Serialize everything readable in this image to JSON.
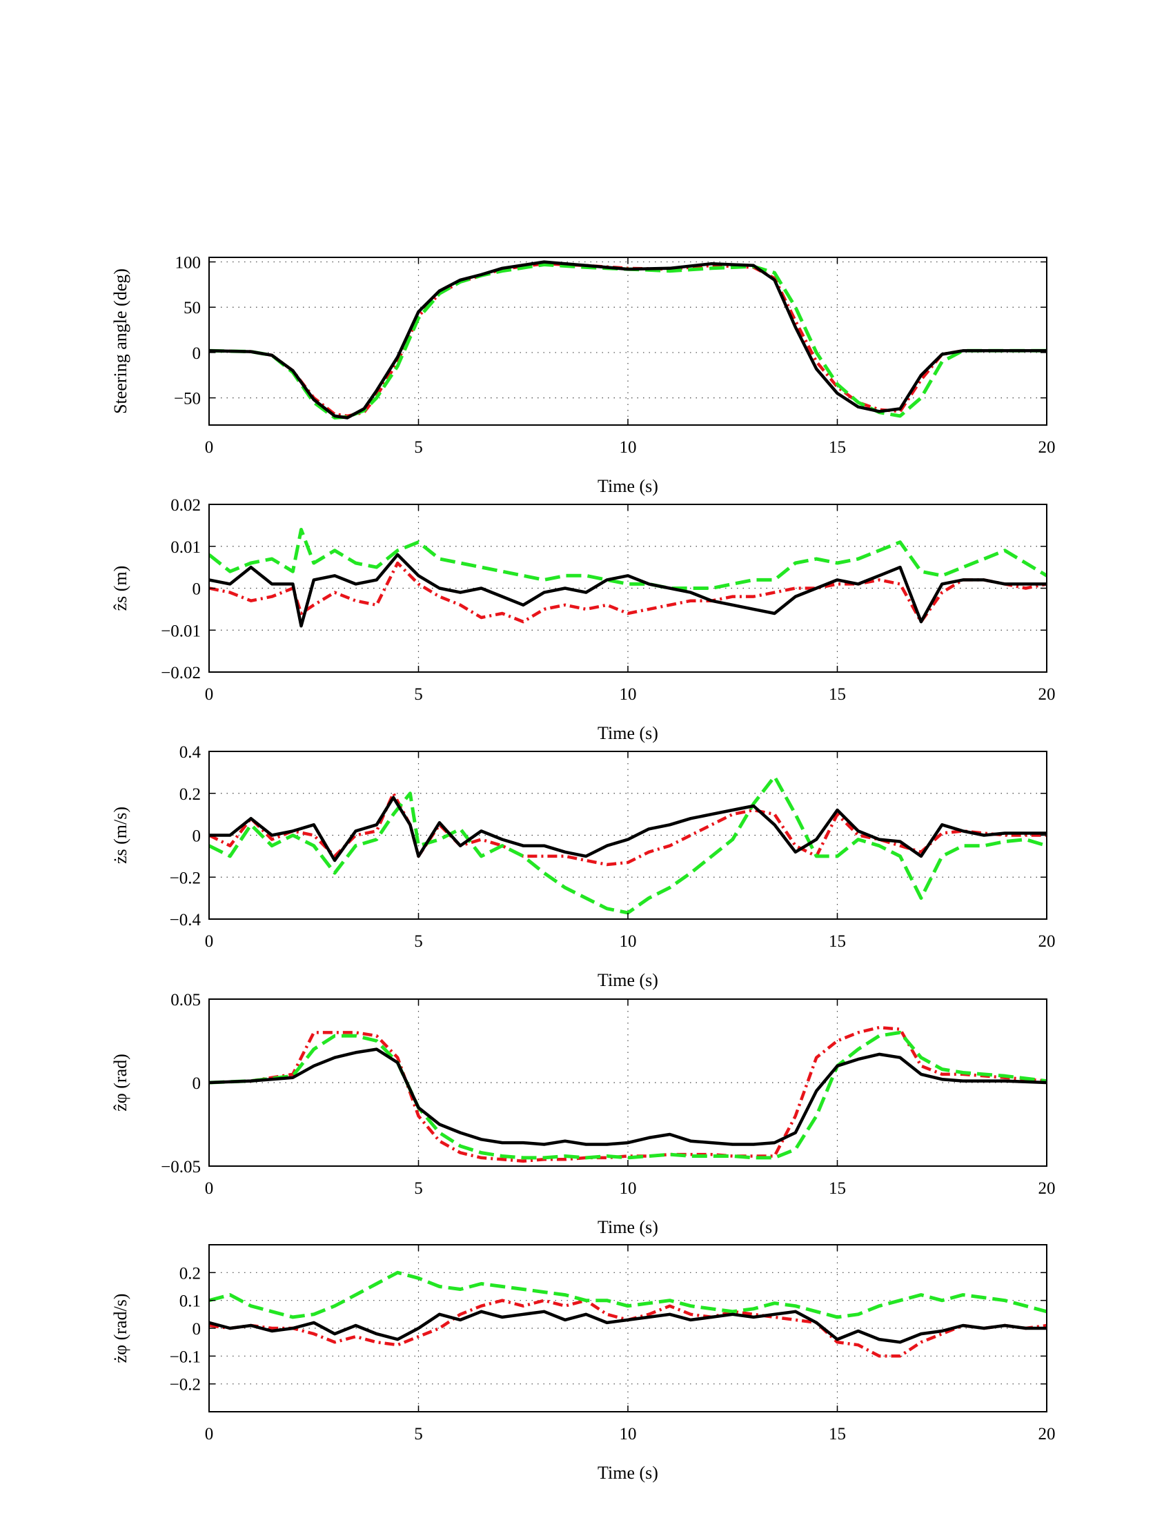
{
  "colors": {
    "series_1": "#e8141a",
    "series_2": "#23e623",
    "series_3": "#000000"
  },
  "chart_data": [
    {
      "type": "line",
      "xlabel": "Time (s)",
      "ylabel": "Steering angle (deg)",
      "xlim": [
        0,
        20
      ],
      "ylim": [
        -80,
        105
      ],
      "xticks": [
        0,
        5,
        10,
        15,
        20
      ],
      "xtick_labels": [
        "0",
        "5",
        "10",
        "15",
        "20"
      ],
      "yticks": [
        -50,
        0,
        50,
        100
      ],
      "ytick_labels": [
        "−50",
        "0",
        "50",
        "100"
      ],
      "grid": true,
      "x": [
        0,
        1,
        1.5,
        2,
        2.5,
        3,
        3.3,
        3.7,
        4,
        4.5,
        5,
        5.5,
        6,
        6.5,
        7,
        8,
        9,
        10,
        11,
        12,
        13,
        13.5,
        14,
        14.5,
        15,
        15.5,
        16,
        16.5,
        17,
        17.5,
        18,
        19,
        20
      ],
      "series": [
        {
          "style": "dashdot",
          "values": [
            2,
            1,
            -3,
            -20,
            -50,
            -68,
            -70,
            -66,
            -48,
            -10,
            40,
            65,
            78,
            85,
            92,
            98,
            96,
            93,
            92,
            96,
            94,
            82,
            35,
            -10,
            -38,
            -55,
            -63,
            -65,
            -30,
            -2,
            2,
            2,
            2
          ]
        },
        {
          "style": "dashed",
          "values": [
            2,
            1,
            -3,
            -22,
            -55,
            -72,
            -71,
            -64,
            -50,
            -15,
            38,
            65,
            78,
            85,
            90,
            97,
            94,
            92,
            90,
            93,
            95,
            88,
            50,
            0,
            -35,
            -55,
            -66,
            -70,
            -50,
            -10,
            2,
            2,
            2
          ]
        },
        {
          "style": "solid",
          "values": [
            2,
            1,
            -3,
            -20,
            -52,
            -70,
            -72,
            -62,
            -42,
            -5,
            45,
            68,
            80,
            86,
            93,
            100,
            96,
            92,
            93,
            98,
            96,
            80,
            28,
            -18,
            -45,
            -60,
            -65,
            -62,
            -25,
            -2,
            2,
            2,
            2
          ]
        }
      ]
    },
    {
      "type": "line",
      "xlabel": "Time (s)",
      "ylabel": "ẑs (m)",
      "xlim": [
        0,
        20
      ],
      "ylim": [
        -0.02,
        0.02
      ],
      "xticks": [
        0,
        5,
        10,
        15,
        20
      ],
      "xtick_labels": [
        "0",
        "5",
        "10",
        "15",
        "20"
      ],
      "yticks": [
        -0.02,
        -0.01,
        0,
        0.01,
        0.02
      ],
      "ytick_labels": [
        "−0.02",
        "−0.01",
        "0",
        "0.01",
        "0.02"
      ],
      "grid": true,
      "x": [
        0,
        0.5,
        1,
        1.5,
        2,
        2.2,
        2.5,
        3,
        3.5,
        4,
        4.5,
        5,
        5.5,
        6,
        6.5,
        7,
        7.5,
        8,
        8.5,
        9,
        9.5,
        10,
        10.5,
        11,
        11.5,
        12,
        12.5,
        13,
        13.5,
        14,
        14.5,
        15,
        15.5,
        16,
        16.5,
        17,
        17.5,
        18,
        18.5,
        19,
        19.5,
        20
      ],
      "series": [
        {
          "style": "dashdot",
          "values": [
            0,
            -0.001,
            -0.003,
            -0.002,
            0,
            -0.006,
            -0.004,
            -0.001,
            -0.003,
            -0.004,
            0.006,
            0.001,
            -0.002,
            -0.004,
            -0.007,
            -0.006,
            -0.008,
            -0.005,
            -0.004,
            -0.005,
            -0.004,
            -0.006,
            -0.005,
            -0.004,
            -0.003,
            -0.003,
            -0.002,
            -0.002,
            -0.001,
            0,
            0,
            0.001,
            0.001,
            0.002,
            0.001,
            -0.008,
            -0.001,
            0.002,
            0.002,
            0.001,
            0,
            0.001
          ]
        },
        {
          "style": "dashed",
          "values": [
            0.008,
            0.004,
            0.006,
            0.007,
            0.004,
            0.014,
            0.006,
            0.009,
            0.006,
            0.005,
            0.009,
            0.011,
            0.007,
            0.006,
            0.005,
            0.004,
            0.003,
            0.002,
            0.003,
            0.003,
            0.002,
            0.001,
            0.001,
            0,
            0,
            0,
            0.001,
            0.002,
            0.002,
            0.006,
            0.007,
            0.006,
            0.007,
            0.009,
            0.011,
            0.004,
            0.003,
            0.005,
            0.007,
            0.009,
            0.006,
            0.003
          ]
        },
        {
          "style": "solid",
          "values": [
            0.002,
            0.001,
            0.005,
            0.001,
            0.001,
            -0.009,
            0.002,
            0.003,
            0.001,
            0.002,
            0.008,
            0.003,
            0,
            -0.001,
            0,
            -0.002,
            -0.004,
            -0.001,
            0,
            -0.001,
            0.002,
            0.003,
            0.001,
            0,
            -0.001,
            -0.003,
            -0.004,
            -0.005,
            -0.006,
            -0.002,
            0,
            0.002,
            0.001,
            0.003,
            0.005,
            -0.008,
            0.001,
            0.002,
            0.002,
            0.001,
            0.001,
            0.001
          ]
        }
      ]
    },
    {
      "type": "line",
      "xlabel": "Time (s)",
      "ylabel": "żs (m/s)",
      "xlim": [
        0,
        20
      ],
      "ylim": [
        -0.4,
        0.4
      ],
      "xticks": [
        0,
        5,
        10,
        15,
        20
      ],
      "xtick_labels": [
        "0",
        "5",
        "10",
        "15",
        "20"
      ],
      "yticks": [
        -0.4,
        -0.2,
        0,
        0.2,
        0.4
      ],
      "ytick_labels": [
        "−0.4",
        "−0.2",
        "0",
        "0.2",
        "0.4"
      ],
      "grid": true,
      "x": [
        0,
        0.5,
        1,
        1.5,
        2,
        2.5,
        3,
        3.5,
        4,
        4.4,
        4.8,
        5,
        5.5,
        6,
        6.5,
        7,
        7.5,
        8,
        8.5,
        9,
        9.5,
        10,
        10.5,
        11,
        11.5,
        12,
        12.5,
        13,
        13.5,
        14,
        14.5,
        15,
        15.5,
        16,
        16.5,
        17,
        17.5,
        18,
        18.5,
        19,
        19.5,
        20
      ],
      "series": [
        {
          "style": "dashdot",
          "values": [
            0,
            -0.05,
            0.08,
            -0.02,
            0.02,
            0,
            -0.1,
            0,
            0.02,
            0.2,
            0.05,
            -0.1,
            0.05,
            -0.05,
            -0.02,
            -0.05,
            -0.1,
            -0.1,
            -0.1,
            -0.12,
            -0.14,
            -0.13,
            -0.08,
            -0.05,
            0,
            0.05,
            0.1,
            0.12,
            0.1,
            -0.05,
            -0.1,
            0.1,
            0,
            -0.02,
            -0.05,
            -0.08,
            0.01,
            0.02,
            0.01,
            0,
            0,
            0
          ]
        },
        {
          "style": "dashed",
          "values": [
            -0.05,
            -0.1,
            0.05,
            -0.05,
            0,
            -0.05,
            -0.18,
            -0.05,
            -0.02,
            0.1,
            0.2,
            -0.05,
            -0.02,
            0.03,
            -0.1,
            -0.05,
            -0.1,
            -0.18,
            -0.25,
            -0.3,
            -0.35,
            -0.37,
            -0.3,
            -0.25,
            -0.18,
            -0.1,
            -0.02,
            0.15,
            0.28,
            0.1,
            -0.1,
            -0.1,
            -0.02,
            -0.05,
            -0.1,
            -0.3,
            -0.1,
            -0.05,
            -0.05,
            -0.03,
            -0.02,
            -0.05
          ]
        },
        {
          "style": "solid",
          "values": [
            0,
            0,
            0.08,
            0,
            0.02,
            0.05,
            -0.12,
            0.02,
            0.05,
            0.18,
            0.05,
            -0.1,
            0.06,
            -0.05,
            0.02,
            -0.02,
            -0.05,
            -0.05,
            -0.08,
            -0.1,
            -0.05,
            -0.02,
            0.03,
            0.05,
            0.08,
            0.1,
            0.12,
            0.14,
            0.05,
            -0.08,
            -0.02,
            0.12,
            0.02,
            -0.02,
            -0.03,
            -0.1,
            0.05,
            0.02,
            0,
            0.01,
            0.01,
            0.01
          ]
        }
      ]
    },
    {
      "type": "line",
      "xlabel": "Time (s)",
      "ylabel": "ẑφ (rad)",
      "xlim": [
        0,
        20
      ],
      "ylim": [
        -0.05,
        0.05
      ],
      "xticks": [
        0,
        5,
        10,
        15,
        20
      ],
      "xtick_labels": [
        "0",
        "5",
        "10",
        "15",
        "20"
      ],
      "yticks": [
        -0.05,
        0,
        0.05
      ],
      "ytick_labels": [
        "−0.05",
        "0",
        "0.05"
      ],
      "grid": true,
      "x": [
        0,
        1,
        2,
        2.5,
        3,
        3.5,
        4,
        4.5,
        5,
        5.5,
        6,
        6.5,
        7,
        7.5,
        8,
        8.5,
        9,
        9.5,
        10,
        10.5,
        11,
        11.5,
        12,
        12.5,
        13,
        13.5,
        14,
        14.5,
        15,
        15.5,
        16,
        16.5,
        17,
        17.5,
        18,
        19,
        20
      ],
      "series": [
        {
          "style": "dashdot",
          "values": [
            0,
            0.001,
            0.005,
            0.03,
            0.03,
            0.03,
            0.028,
            0.015,
            -0.02,
            -0.035,
            -0.042,
            -0.045,
            -0.046,
            -0.047,
            -0.046,
            -0.046,
            -0.045,
            -0.045,
            -0.044,
            -0.044,
            -0.043,
            -0.043,
            -0.043,
            -0.044,
            -0.044,
            -0.044,
            -0.02,
            0.015,
            0.025,
            0.03,
            0.033,
            0.032,
            0.01,
            0.005,
            0.005,
            0.003,
            0.001
          ]
        },
        {
          "style": "dashed",
          "values": [
            0,
            0.001,
            0.004,
            0.02,
            0.028,
            0.028,
            0.025,
            0.012,
            -0.015,
            -0.03,
            -0.038,
            -0.042,
            -0.044,
            -0.045,
            -0.045,
            -0.044,
            -0.045,
            -0.044,
            -0.045,
            -0.044,
            -0.043,
            -0.044,
            -0.044,
            -0.044,
            -0.045,
            -0.045,
            -0.04,
            -0.02,
            0.01,
            0.02,
            0.028,
            0.03,
            0.015,
            0.008,
            0.006,
            0.004,
            0.001
          ]
        },
        {
          "style": "solid",
          "values": [
            0,
            0.001,
            0.003,
            0.01,
            0.015,
            0.018,
            0.02,
            0.012,
            -0.015,
            -0.025,
            -0.03,
            -0.034,
            -0.036,
            -0.036,
            -0.037,
            -0.035,
            -0.037,
            -0.037,
            -0.036,
            -0.033,
            -0.031,
            -0.035,
            -0.036,
            -0.037,
            -0.037,
            -0.036,
            -0.03,
            -0.005,
            0.01,
            0.014,
            0.017,
            0.015,
            0.005,
            0.002,
            0.001,
            0.001,
            0
          ]
        }
      ]
    },
    {
      "type": "line",
      "xlabel": "Time (s)",
      "ylabel": "żφ (rad/s)",
      "xlim": [
        0,
        20
      ],
      "ylim": [
        -0.3,
        0.3
      ],
      "xticks": [
        0,
        5,
        10,
        15,
        20
      ],
      "xtick_labels": [
        "0",
        "5",
        "10",
        "15",
        "20"
      ],
      "yticks": [
        -0.2,
        -0.1,
        0,
        0.1,
        0.2
      ],
      "ytick_labels": [
        "−0.2",
        "−0.1",
        "0",
        "0.1",
        "0.2"
      ],
      "grid": true,
      "x": [
        0,
        0.5,
        1,
        1.5,
        2,
        2.5,
        3,
        3.5,
        4,
        4.5,
        5,
        5.5,
        6,
        6.5,
        7,
        7.5,
        8,
        8.5,
        9,
        9.5,
        10,
        10.5,
        11,
        11.5,
        12,
        12.5,
        13,
        13.5,
        14,
        14.5,
        15,
        15.5,
        16,
        16.5,
        17,
        17.5,
        18,
        18.5,
        19,
        19.5,
        20
      ],
      "series": [
        {
          "style": "dashdot",
          "values": [
            0.01,
            0,
            0.01,
            0,
            0,
            -0.02,
            -0.05,
            -0.03,
            -0.05,
            -0.06,
            -0.03,
            0,
            0.05,
            0.08,
            0.1,
            0.08,
            0.1,
            0.08,
            0.1,
            0.05,
            0.03,
            0.05,
            0.08,
            0.05,
            0.04,
            0.06,
            0.05,
            0.04,
            0.03,
            0.02,
            -0.05,
            -0.06,
            -0.1,
            -0.1,
            -0.05,
            -0.02,
            0.01,
            0,
            0.01,
            0,
            0.01
          ]
        },
        {
          "style": "dashed",
          "values": [
            0.1,
            0.12,
            0.08,
            0.06,
            0.04,
            0.05,
            0.08,
            0.12,
            0.16,
            0.2,
            0.18,
            0.15,
            0.14,
            0.16,
            0.15,
            0.14,
            0.13,
            0.12,
            0.1,
            0.1,
            0.08,
            0.09,
            0.1,
            0.08,
            0.07,
            0.06,
            0.07,
            0.09,
            0.08,
            0.06,
            0.04,
            0.05,
            0.08,
            0.1,
            0.12,
            0.1,
            0.12,
            0.11,
            0.1,
            0.08,
            0.06
          ]
        },
        {
          "style": "solid",
          "values": [
            0.02,
            0,
            0.01,
            -0.01,
            0,
            0.02,
            -0.02,
            0.01,
            -0.02,
            -0.04,
            0,
            0.05,
            0.03,
            0.06,
            0.04,
            0.05,
            0.06,
            0.03,
            0.05,
            0.02,
            0.03,
            0.04,
            0.05,
            0.03,
            0.04,
            0.05,
            0.04,
            0.05,
            0.06,
            0.02,
            -0.04,
            -0.01,
            -0.04,
            -0.05,
            -0.02,
            -0.01,
            0.01,
            0,
            0.01,
            0,
            0
          ]
        }
      ]
    }
  ]
}
